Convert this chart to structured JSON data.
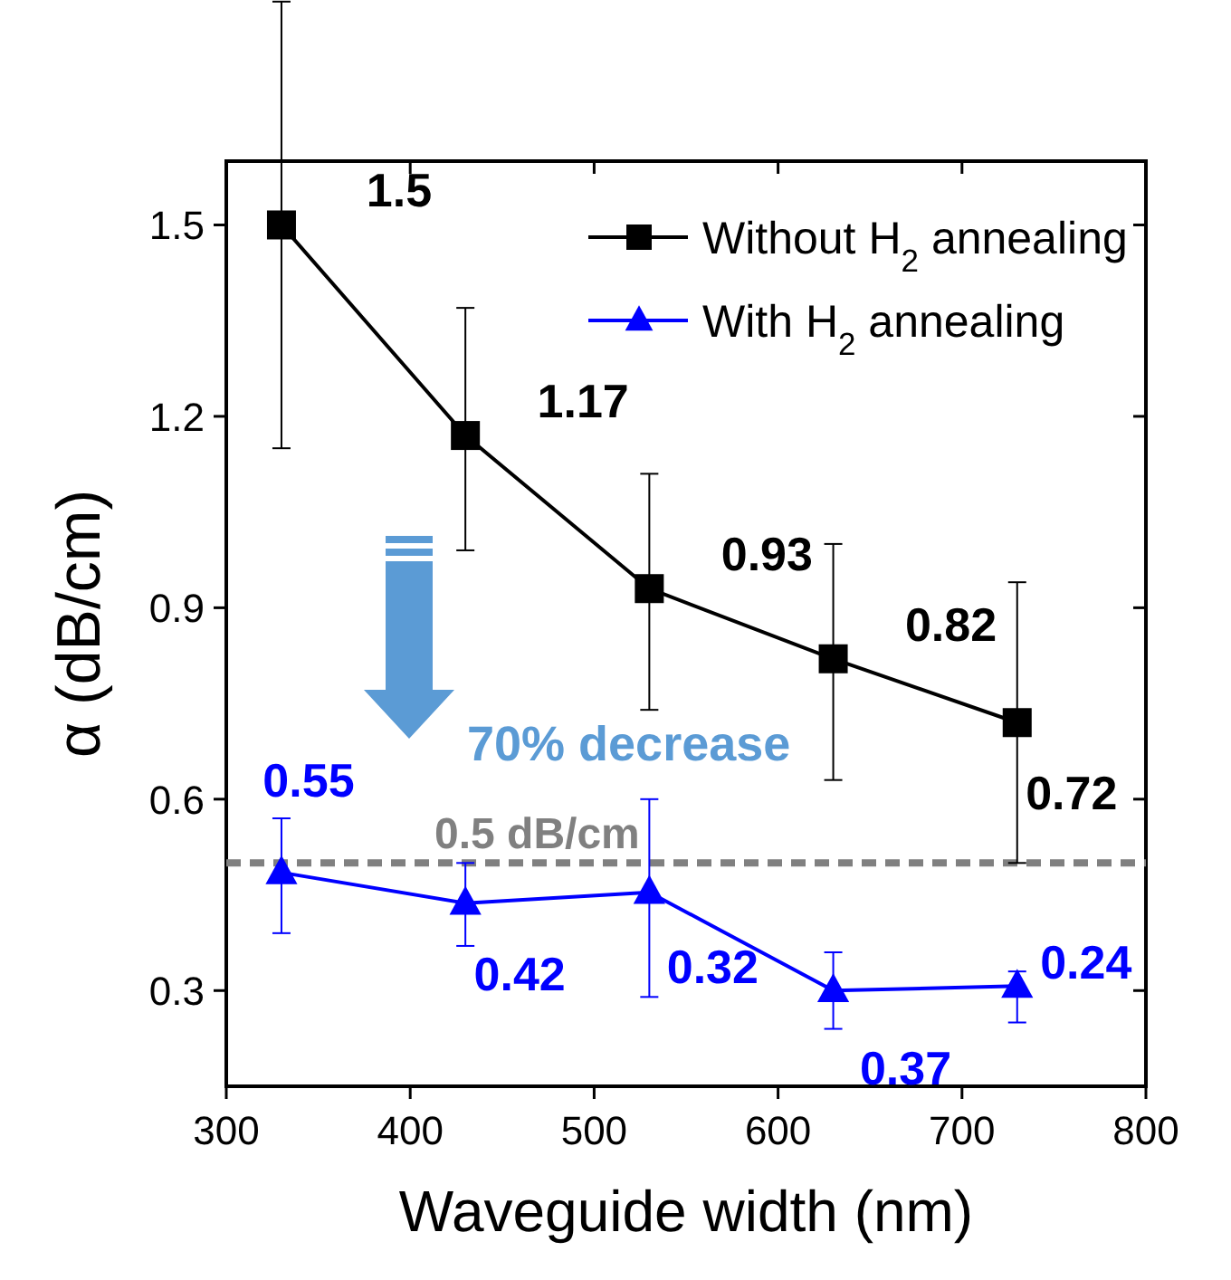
{
  "chart_data": {
    "type": "line",
    "xlabel": "Waveguide width (nm)",
    "ylabel": "α (dB/cm)",
    "x": [
      330,
      430,
      530,
      630,
      730
    ],
    "series": [
      {
        "name": "Without H$_{2}$ annealing",
        "color": "#000000",
        "marker": "square",
        "values": [
          1.5,
          1.17,
          0.93,
          0.82,
          0.72
        ],
        "errors": [
          [
            1.15,
            1.85
          ],
          [
            0.99,
            1.37
          ],
          [
            0.74,
            1.11
          ],
          [
            0.63,
            1.0
          ],
          [
            0.5,
            0.94
          ]
        ],
        "value_labels": [
          "1.5",
          "1.17",
          "0.93",
          "0.82",
          "0.72"
        ]
      },
      {
        "name": "With H$_{2}$ annealing",
        "color": "#0000ff",
        "marker": "triangle",
        "values": [
          0.485,
          0.437,
          0.454,
          0.3,
          0.307
        ],
        "errors": [
          [
            0.39,
            0.57
          ],
          [
            0.37,
            0.5
          ],
          [
            0.29,
            0.6
          ],
          [
            0.24,
            0.36
          ],
          [
            0.25,
            0.33
          ]
        ]
      }
    ],
    "xlim": [
      300,
      800
    ],
    "xticks": [
      300,
      400,
      500,
      600,
      700,
      800
    ],
    "ylim": [
      0.15,
      1.6
    ],
    "yticks": [
      0.3,
      0.6,
      0.9,
      1.2,
      1.5
    ],
    "ref_lines": [
      {
        "axis": "y",
        "value": 0.5,
        "label": "0.5 dB/cm",
        "color": "#808080",
        "line_style": "dashed"
      }
    ],
    "annotations": [
      "0.55",
      "0.42",
      "0.32",
      "0.37",
      "0.24",
      "70% decrease"
    ],
    "legend": "top right",
    "grid": false,
    "line_style": "solid"
  }
}
